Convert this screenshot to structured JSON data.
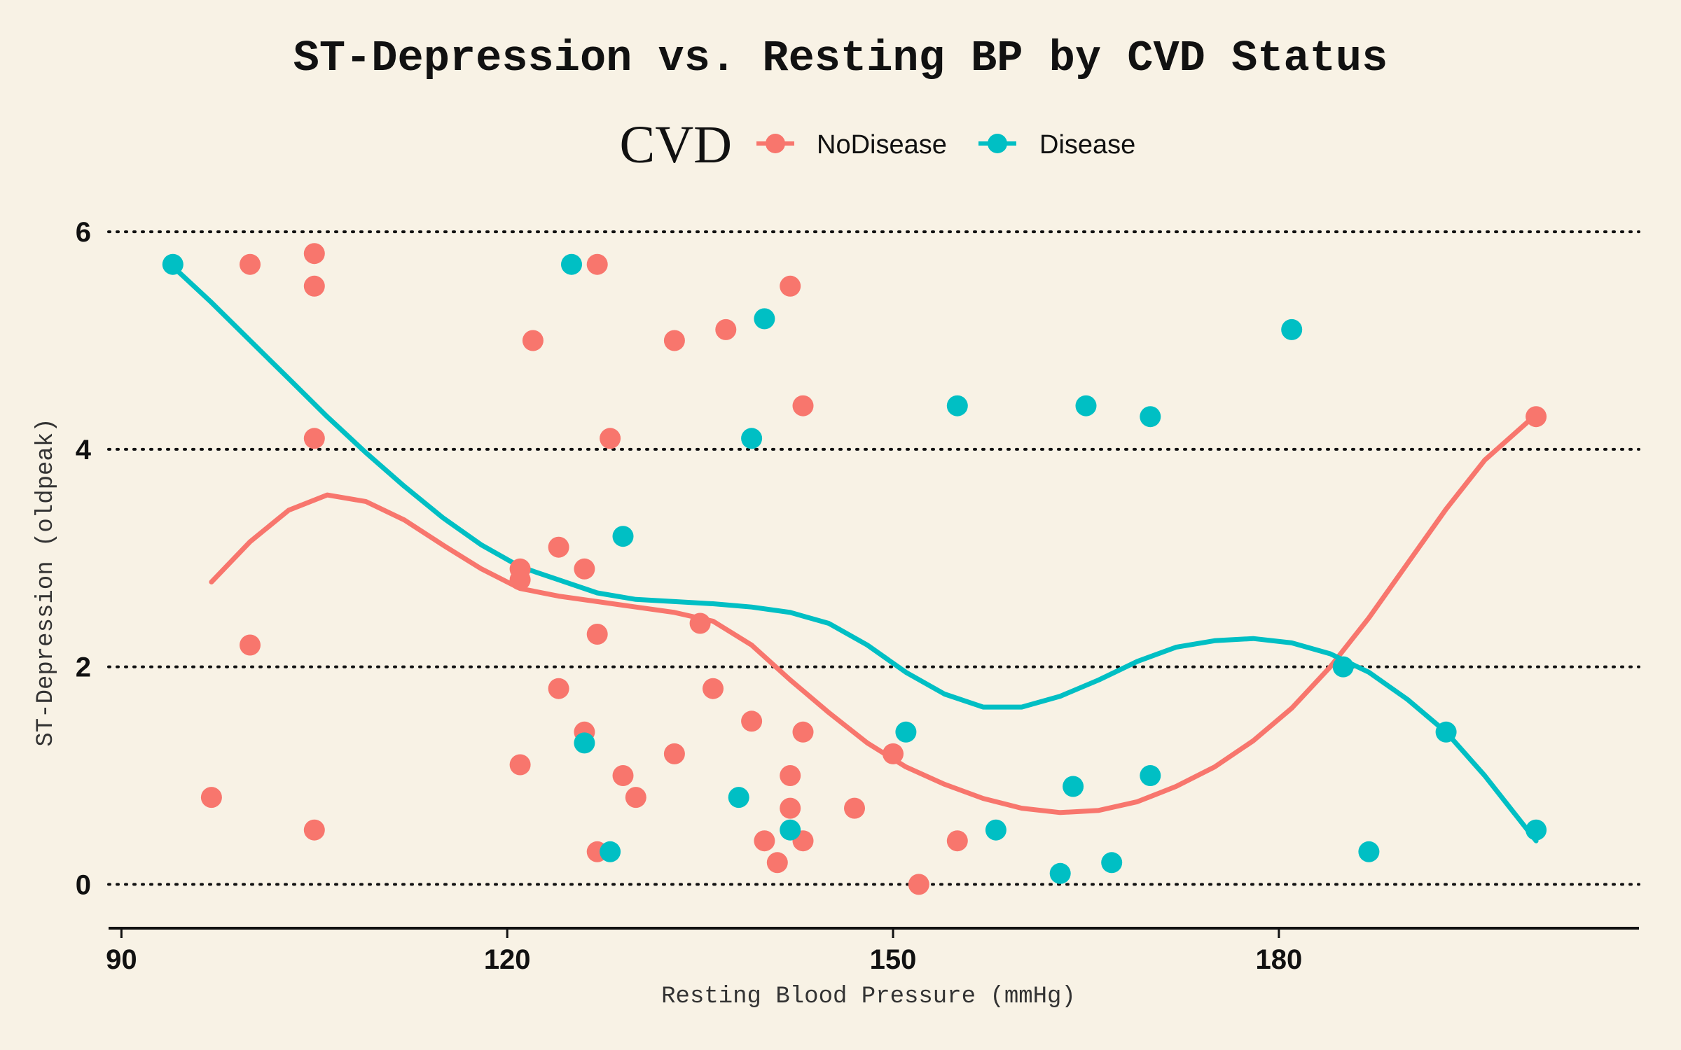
{
  "chart_data": {
    "type": "scatter",
    "title": "ST-Depression vs. Resting BP by CVD Status",
    "xlabel": "Resting Blood Pressure (mmHg)",
    "ylabel": "ST-Depression (oldpeak)",
    "xlim": [
      89,
      208
    ],
    "ylim": [
      -0.3,
      6.2
    ],
    "xticks": [
      90,
      120,
      150,
      180
    ],
    "yticks": [
      0,
      2,
      4,
      6
    ],
    "grid": "horizontal-dotted",
    "legend": {
      "title": "CVD",
      "position": "top"
    },
    "series": [
      {
        "name": "NoDisease",
        "color": "#f8766d",
        "points": [
          [
            97,
            0.8
          ],
          [
            100,
            5.7
          ],
          [
            100,
            2.2
          ],
          [
            105,
            5.8
          ],
          [
            105,
            5.5
          ],
          [
            105,
            4.1
          ],
          [
            105,
            0.5
          ],
          [
            121,
            2.9
          ],
          [
            121,
            2.8
          ],
          [
            121,
            1.1
          ],
          [
            122,
            5.0
          ],
          [
            124,
            3.1
          ],
          [
            124,
            1.8
          ],
          [
            126,
            2.9
          ],
          [
            126,
            1.4
          ],
          [
            127,
            5.7
          ],
          [
            127,
            2.3
          ],
          [
            127,
            0.3
          ],
          [
            128,
            4.1
          ],
          [
            129,
            1.0
          ],
          [
            130,
            0.8
          ],
          [
            133,
            5.0
          ],
          [
            133,
            1.2
          ],
          [
            135,
            2.4
          ],
          [
            136,
            1.8
          ],
          [
            137,
            5.1
          ],
          [
            139,
            1.5
          ],
          [
            140,
            0.4
          ],
          [
            141,
            0.2
          ],
          [
            142,
            5.5
          ],
          [
            142,
            1.0
          ],
          [
            142,
            0.7
          ],
          [
            143,
            4.4
          ],
          [
            143,
            1.4
          ],
          [
            143,
            0.4
          ],
          [
            147,
            0.7
          ],
          [
            150,
            1.2
          ],
          [
            152,
            0.0
          ],
          [
            155,
            0.4
          ],
          [
            200,
            4.3
          ]
        ],
        "smooth": [
          [
            97,
            2.78
          ],
          [
            100,
            3.15
          ],
          [
            103,
            3.44
          ],
          [
            106,
            3.58
          ],
          [
            109,
            3.52
          ],
          [
            112,
            3.35
          ],
          [
            115,
            3.12
          ],
          [
            118,
            2.9
          ],
          [
            121,
            2.72
          ],
          [
            124,
            2.65
          ],
          [
            127,
            2.6
          ],
          [
            130,
            2.55
          ],
          [
            133,
            2.5
          ],
          [
            136,
            2.42
          ],
          [
            139,
            2.2
          ],
          [
            142,
            1.88
          ],
          [
            145,
            1.58
          ],
          [
            148,
            1.3
          ],
          [
            151,
            1.08
          ],
          [
            154,
            0.92
          ],
          [
            157,
            0.79
          ],
          [
            160,
            0.7
          ],
          [
            163,
            0.66
          ],
          [
            166,
            0.68
          ],
          [
            169,
            0.76
          ],
          [
            172,
            0.9
          ],
          [
            175,
            1.08
          ],
          [
            178,
            1.32
          ],
          [
            181,
            1.62
          ],
          [
            184,
            2.0
          ],
          [
            187,
            2.45
          ],
          [
            190,
            2.95
          ],
          [
            193,
            3.45
          ],
          [
            196,
            3.9
          ],
          [
            200,
            4.32
          ]
        ]
      },
      {
        "name": "Disease",
        "color": "#00bfc4",
        "points": [
          [
            94,
            5.7
          ],
          [
            125,
            5.7
          ],
          [
            126,
            1.3
          ],
          [
            128,
            0.3
          ],
          [
            129,
            3.2
          ],
          [
            138,
            0.8
          ],
          [
            139,
            4.1
          ],
          [
            140,
            5.2
          ],
          [
            142,
            0.5
          ],
          [
            151,
            1.4
          ],
          [
            155,
            4.4
          ],
          [
            158,
            0.5
          ],
          [
            163,
            0.1
          ],
          [
            164,
            0.9
          ],
          [
            165,
            4.4
          ],
          [
            167,
            0.2
          ],
          [
            170,
            4.3
          ],
          [
            170,
            1.0
          ],
          [
            181,
            5.1
          ],
          [
            185,
            2.0
          ],
          [
            187,
            0.3
          ],
          [
            193,
            1.4
          ],
          [
            200,
            0.5
          ]
        ],
        "smooth": [
          [
            94,
            5.68
          ],
          [
            97,
            5.35
          ],
          [
            100,
            5.0
          ],
          [
            103,
            4.65
          ],
          [
            106,
            4.3
          ],
          [
            109,
            3.97
          ],
          [
            112,
            3.66
          ],
          [
            115,
            3.37
          ],
          [
            118,
            3.12
          ],
          [
            121,
            2.92
          ],
          [
            124,
            2.8
          ],
          [
            127,
            2.68
          ],
          [
            130,
            2.62
          ],
          [
            133,
            2.6
          ],
          [
            136,
            2.58
          ],
          [
            139,
            2.55
          ],
          [
            142,
            2.5
          ],
          [
            145,
            2.4
          ],
          [
            148,
            2.2
          ],
          [
            151,
            1.95
          ],
          [
            154,
            1.75
          ],
          [
            157,
            1.63
          ],
          [
            160,
            1.63
          ],
          [
            163,
            1.73
          ],
          [
            166,
            1.88
          ],
          [
            169,
            2.05
          ],
          [
            172,
            2.18
          ],
          [
            175,
            2.24
          ],
          [
            178,
            2.26
          ],
          [
            181,
            2.22
          ],
          [
            184,
            2.12
          ],
          [
            187,
            1.95
          ],
          [
            190,
            1.7
          ],
          [
            193,
            1.4
          ],
          [
            196,
            1.0
          ],
          [
            200,
            0.4
          ]
        ]
      }
    ]
  }
}
